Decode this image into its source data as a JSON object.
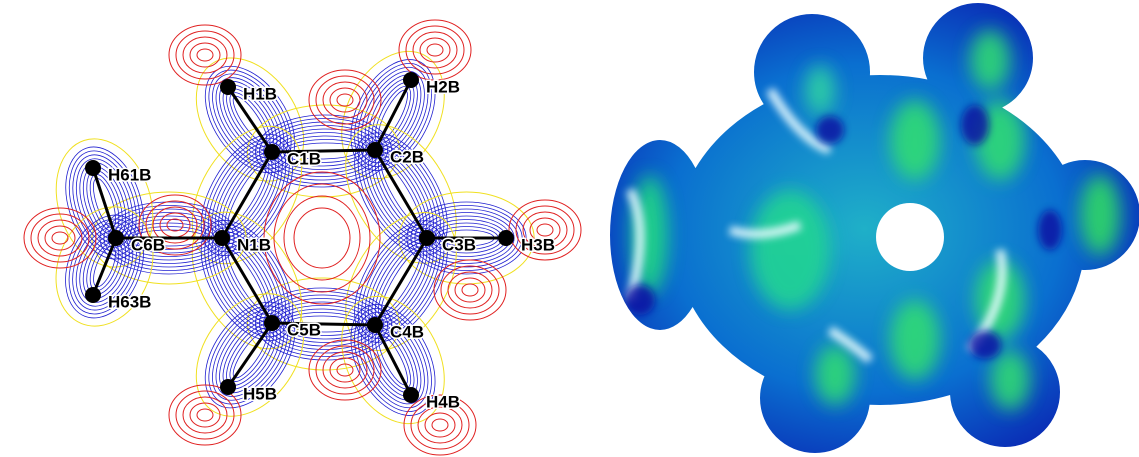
{
  "nodes": [
    {
      "label": "H1B"
    },
    {
      "label": "H2B"
    },
    {
      "label": "C1B"
    },
    {
      "label": "C2B"
    },
    {
      "label": "H61B"
    },
    {
      "label": "C6B"
    },
    {
      "label": "N1B"
    },
    {
      "label": "C3B"
    },
    {
      "label": "H3B"
    },
    {
      "label": "H63B"
    },
    {
      "label": "C5B"
    },
    {
      "label": "C4B"
    },
    {
      "label": "H5B"
    },
    {
      "label": "H4B"
    }
  ]
}
